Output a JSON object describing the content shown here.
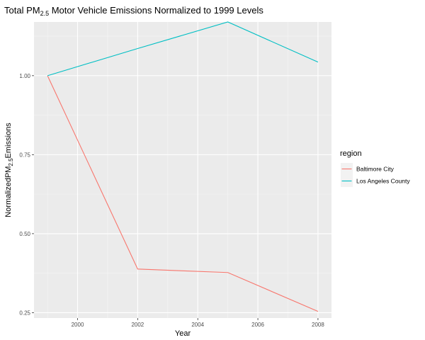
{
  "chart_data": {
    "type": "line",
    "title": {
      "prefix": "Total PM",
      "subscript": "2.5",
      "suffix": " Motor Vehicle Emissions Normalized to 1999 Levels"
    },
    "xlabel": "Year",
    "ylabel": {
      "prefix": "NormalizedPM",
      "subscript": "2.5",
      "suffix": "Emissions"
    },
    "x": [
      1999,
      2002,
      2005,
      2008
    ],
    "xlim": [
      1998.55,
      2008.45
    ],
    "ylim": [
      0.233,
      1.17
    ],
    "x_ticks": [
      2000,
      2002,
      2004,
      2006,
      2008
    ],
    "x_tick_labels": [
      "2000",
      "2002",
      "2004",
      "2006",
      "2008"
    ],
    "y_ticks": [
      0.25,
      0.5,
      0.75,
      1.0
    ],
    "y_tick_labels": [
      "0.25",
      "0.50",
      "0.75",
      "1.00"
    ],
    "grid": true,
    "background": "#ebebeb",
    "legend": {
      "title": "region",
      "placement": "right"
    },
    "series": [
      {
        "name": "Baltimore City",
        "color": "#f8766d",
        "values": [
          1.0,
          0.388,
          0.377,
          0.254
        ]
      },
      {
        "name": "Los Angeles County",
        "color": "#00bfc4",
        "values": [
          1.0,
          1.086,
          1.17,
          1.043
        ]
      }
    ]
  }
}
